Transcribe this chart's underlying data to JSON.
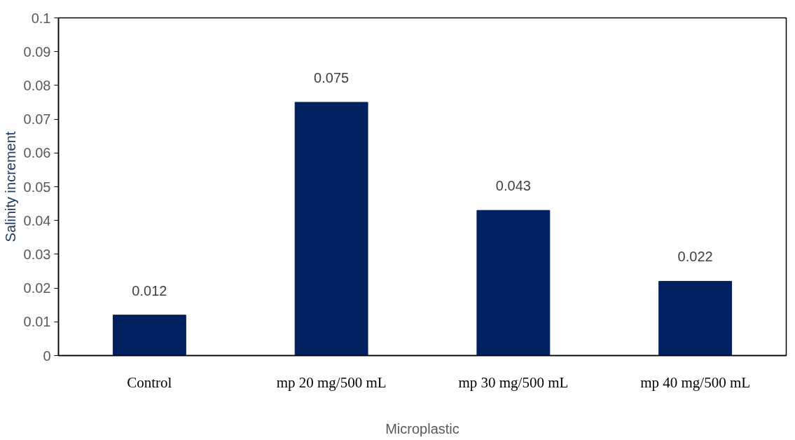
{
  "chart_data": {
    "type": "bar",
    "xlabel": "Microplastic",
    "ylabel": "Salinity increment",
    "categories": [
      "Control",
      "mp 20 mg/500 mL",
      "mp 30 mg/500 mL",
      "mp 40 mg/500 mL"
    ],
    "values": [
      0.012,
      0.075,
      0.043,
      0.022
    ],
    "color": "#002060",
    "ylim": [
      0,
      0.1
    ],
    "yticks": [
      0,
      0.01,
      0.02,
      0.03,
      0.04,
      0.05,
      0.06,
      0.07,
      0.08,
      0.09,
      0.1
    ],
    "data_labels": true,
    "grid": false
  }
}
